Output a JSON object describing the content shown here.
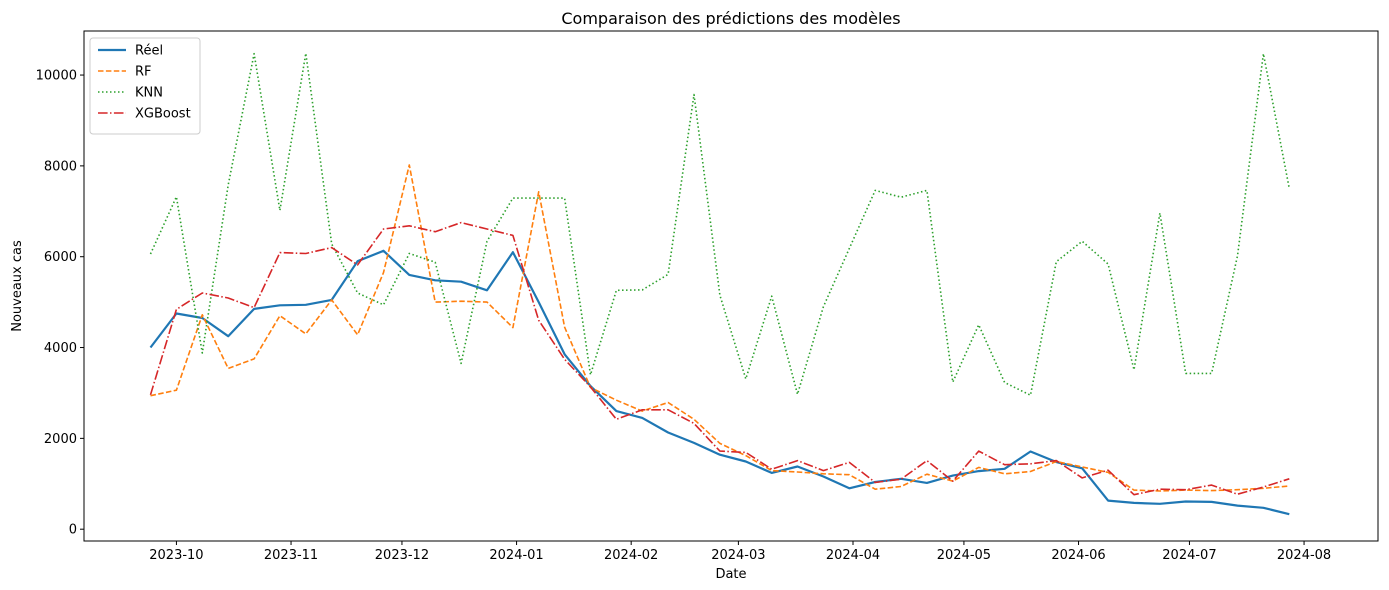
{
  "chart_data": {
    "type": "line",
    "title": "Comparaison des prédictions des modèles",
    "xlabel": "Date",
    "ylabel": "Nouveaux cas",
    "grid": false,
    "legend_position": "top-left",
    "xlim": [
      "2023-09-06",
      "2024-08-21"
    ],
    "ylim": [
      -260,
      10970
    ],
    "x_ticks": [
      "2023-10-01",
      "2023-11-01",
      "2023-12-01",
      "2024-01-01",
      "2024-02-01",
      "2024-03-01",
      "2024-04-01",
      "2024-05-01",
      "2024-06-01",
      "2024-07-01",
      "2024-08-01"
    ],
    "x_tick_labels": [
      "2023-10",
      "2023-11",
      "2023-12",
      "2024-01",
      "2024-02",
      "2024-03",
      "2024-04",
      "2024-05",
      "2024-06",
      "2024-07",
      "2024-08"
    ],
    "y_ticks": [
      0,
      2000,
      4000,
      6000,
      8000,
      10000
    ],
    "y_tick_labels": [
      "0",
      "2000",
      "4000",
      "6000",
      "8000",
      "10000"
    ],
    "x": [
      "2023-09-24",
      "2023-10-01",
      "2023-10-08",
      "2023-10-15",
      "2023-10-22",
      "2023-10-29",
      "2023-11-05",
      "2023-11-12",
      "2023-11-19",
      "2023-11-26",
      "2023-12-03",
      "2023-12-10",
      "2023-12-17",
      "2023-12-24",
      "2023-12-31",
      "2024-01-07",
      "2024-01-14",
      "2024-01-21",
      "2024-01-28",
      "2024-02-04",
      "2024-02-11",
      "2024-02-18",
      "2024-02-25",
      "2024-03-03",
      "2024-03-10",
      "2024-03-17",
      "2024-03-24",
      "2024-03-31",
      "2024-04-07",
      "2024-04-14",
      "2024-04-21",
      "2024-04-28",
      "2024-05-05",
      "2024-05-12",
      "2024-05-19",
      "2024-05-26",
      "2024-06-02",
      "2024-06-09",
      "2024-06-16",
      "2024-06-23",
      "2024-06-30",
      "2024-07-07",
      "2024-07-14",
      "2024-07-21",
      "2024-07-28"
    ],
    "series": [
      {
        "name": "Réel",
        "color": "#1f77b4",
        "dash": "solid",
        "values": [
          4000,
          4750,
          4650,
          4250,
          4850,
          4930,
          4940,
          5050,
          5900,
          6130,
          5600,
          5480,
          5450,
          5260,
          6100,
          5000,
          3850,
          3150,
          2600,
          2450,
          2130,
          1900,
          1640,
          1490,
          1240,
          1380,
          1160,
          900,
          1040,
          1110,
          1020,
          1180,
          1280,
          1330,
          1710,
          1480,
          1340,
          630,
          580,
          560,
          610,
          600,
          520,
          470,
          330
        ]
      },
      {
        "name": "RF",
        "color": "#ff7f0e",
        "dash": "dashed",
        "values": [
          2940,
          3060,
          4720,
          3540,
          3750,
          4700,
          4300,
          5050,
          4280,
          5650,
          8020,
          5000,
          5020,
          5000,
          4440,
          7430,
          4450,
          3120,
          2840,
          2600,
          2790,
          2420,
          1890,
          1620,
          1290,
          1260,
          1220,
          1200,
          880,
          940,
          1210,
          1060,
          1360,
          1220,
          1270,
          1490,
          1370,
          1250,
          860,
          840,
          860,
          850,
          870,
          900,
          950
        ]
      },
      {
        "name": "KNN",
        "color": "#2ca02c",
        "dash": "dotted",
        "values": [
          6060,
          7320,
          3880,
          7580,
          10470,
          7020,
          10480,
          6280,
          5200,
          4940,
          6070,
          5880,
          3650,
          6340,
          7290,
          7290,
          7290,
          3400,
          5260,
          5270,
          5610,
          9570,
          5150,
          3310,
          5130,
          2970,
          4900,
          6180,
          7460,
          7310,
          7460,
          3240,
          4500,
          3230,
          2950,
          5890,
          6340,
          5840,
          3510,
          6960,
          3430,
          3430,
          6020,
          10470,
          7500
        ]
      },
      {
        "name": "XGBoost",
        "color": "#d62728",
        "dash": "dashdot",
        "values": [
          2960,
          4840,
          5200,
          5090,
          4880,
          6090,
          6070,
          6200,
          5820,
          6610,
          6680,
          6550,
          6750,
          6610,
          6470,
          4600,
          3740,
          3130,
          2420,
          2630,
          2630,
          2330,
          1720,
          1690,
          1320,
          1510,
          1290,
          1470,
          1030,
          1100,
          1510,
          1060,
          1720,
          1420,
          1440,
          1510,
          1130,
          1300,
          760,
          880,
          870,
          970,
          770,
          930,
          1110
        ]
      }
    ]
  }
}
